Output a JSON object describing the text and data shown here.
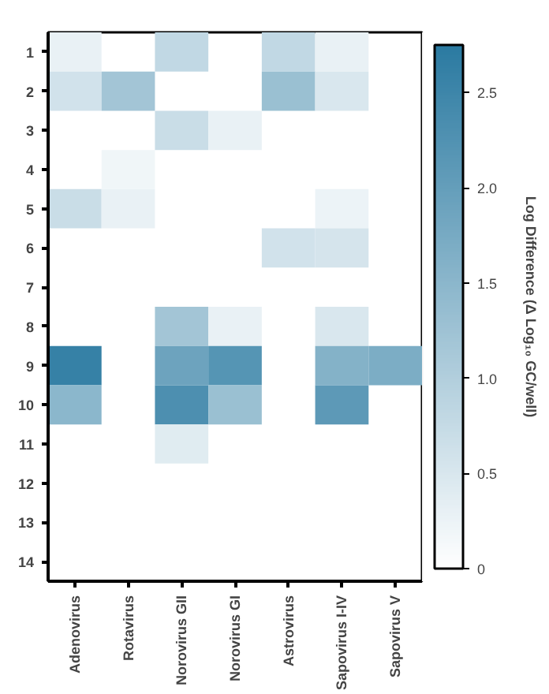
{
  "chart_data": {
    "type": "heatmap",
    "clabel": "Log Difference (Δ Log₁₀ GC/well)",
    "categories": [
      "Adenovirus",
      "Rotavirus",
      "Norovirus GII",
      "Norovirus GI",
      "Astrovirus",
      "Sapovirus I-IV",
      "Sapovirus V"
    ],
    "y_categories": [
      "1",
      "2",
      "3",
      "4",
      "5",
      "6",
      "7",
      "8",
      "9",
      "10",
      "11",
      "12",
      "13",
      "14"
    ],
    "cells": [
      [
        0.3,
        null,
        0.8,
        null,
        0.8,
        0.3,
        null
      ],
      [
        0.6,
        1.2,
        null,
        null,
        1.3,
        0.5,
        null
      ],
      [
        null,
        null,
        0.7,
        0.3,
        null,
        null,
        null
      ],
      [
        null,
        0.2,
        null,
        null,
        null,
        null,
        null
      ],
      [
        0.7,
        0.3,
        null,
        null,
        null,
        0.25,
        null
      ],
      [
        null,
        null,
        null,
        null,
        0.6,
        0.55,
        null
      ],
      [
        null,
        null,
        null,
        null,
        null,
        null,
        null
      ],
      [
        null,
        null,
        1.2,
        0.3,
        null,
        0.5,
        null
      ],
      [
        2.6,
        null,
        1.9,
        2.2,
        null,
        1.6,
        1.7
      ],
      [
        1.5,
        null,
        2.3,
        1.3,
        null,
        2.1,
        null
      ],
      [
        null,
        null,
        0.4,
        null,
        null,
        null,
        null
      ],
      [
        null,
        null,
        null,
        null,
        null,
        null,
        null
      ],
      [
        null,
        null,
        null,
        null,
        null,
        null,
        null
      ],
      [
        null,
        null,
        null,
        null,
        null,
        null,
        null
      ]
    ],
    "clim": [
      0,
      2.75
    ],
    "cticks": [
      0,
      0.5,
      {
        "value": 1,
        "label": "1.0"
      },
      1.5,
      {
        "value": 2,
        "label": "2.0"
      },
      2.5
    ],
    "color": "#2b7aa1"
  }
}
